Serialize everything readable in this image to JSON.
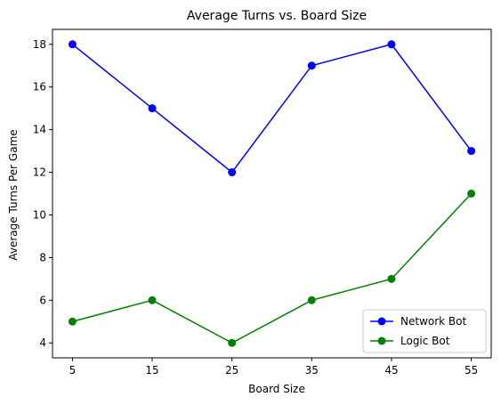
{
  "chart_data": {
    "type": "line",
    "title": "Average Turns vs. Board Size",
    "xlabel": "Board Size",
    "ylabel": "Average Turns Per Game",
    "x": [
      5,
      15,
      25,
      35,
      45,
      55
    ],
    "xlim": [
      2.5,
      57.5
    ],
    "ylim": [
      3.3,
      18.7
    ],
    "yticks": [
      4,
      6,
      8,
      10,
      12,
      14,
      16,
      18
    ],
    "grid": false,
    "legend_position": "lower-right",
    "series": [
      {
        "name": "Network Bot",
        "color": "#0000ff",
        "marker": "circle",
        "values": [
          18,
          15,
          12,
          17,
          18,
          13
        ]
      },
      {
        "name": "Logic Bot",
        "color": "#008000",
        "marker": "circle",
        "values": [
          5,
          6,
          4,
          6,
          7,
          11
        ]
      }
    ]
  }
}
